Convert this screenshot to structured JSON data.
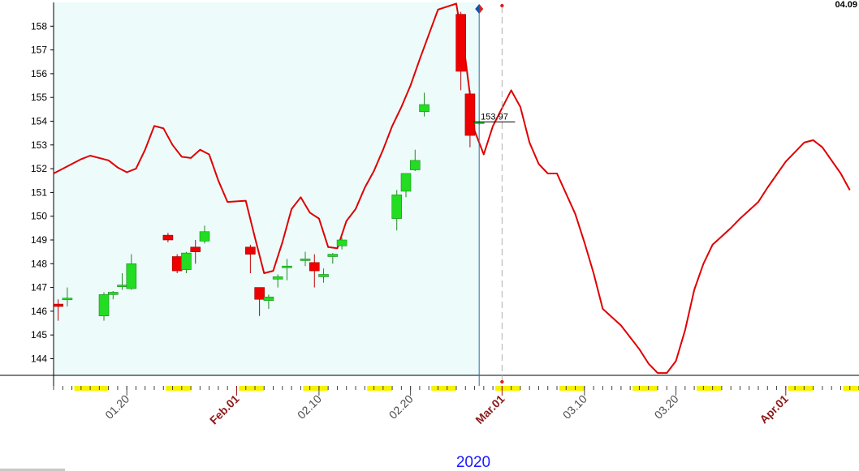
{
  "corner_label": "04.09",
  "year_label": "2020",
  "colors": {
    "background": "#ffffff",
    "history_shade": "#edfbfb",
    "cycle_line": "#e00000",
    "candle_up": "#22dd22",
    "candle_down": "#ee0000",
    "today_line": "#2a6ea0",
    "projection_line": "#b0b0b0",
    "marker_bar": "#f7f200",
    "month_label": "#8b1a1a",
    "date_label": "#4d4d4d"
  },
  "chart_data": {
    "type": "candlestick",
    "y_axis": {
      "min": 143.3,
      "max": 159.0,
      "ticks": [
        144,
        145,
        146,
        147,
        148,
        149,
        150,
        151,
        152,
        153,
        154,
        155,
        156,
        157,
        158
      ]
    },
    "x_axis": {
      "start": "2020-01-12",
      "end": "2020-04-09",
      "labels": [
        {
          "date": "2020-01-20",
          "text": "01.20",
          "type": "date"
        },
        {
          "date": "2020-02-01",
          "text": "Feb.01",
          "type": "month"
        },
        {
          "date": "2020-02-10",
          "text": "02.10",
          "type": "date"
        },
        {
          "date": "2020-02-20",
          "text": "02.20",
          "type": "date"
        },
        {
          "date": "2020-03-01",
          "text": "Mar.01",
          "type": "month"
        },
        {
          "date": "2020-03-10",
          "text": "03.10",
          "type": "date"
        },
        {
          "date": "2020-03-20",
          "text": "03.20",
          "type": "date"
        },
        {
          "date": "2020-04-01",
          "text": "Apr.01",
          "type": "month"
        }
      ]
    },
    "candles": [
      {
        "date": "2020-01-12",
        "open": 146.3,
        "high": 146.5,
        "low": 145.6,
        "close": 146.2
      },
      {
        "date": "2020-01-13",
        "open": 146.5,
        "high": 147.0,
        "low": 146.2,
        "close": 146.55
      },
      {
        "date": "2020-01-17",
        "open": 145.8,
        "high": 146.8,
        "low": 145.6,
        "close": 146.7
      },
      {
        "date": "2020-01-18",
        "open": 146.7,
        "high": 146.85,
        "low": 146.5,
        "close": 146.8
      },
      {
        "date": "2020-01-19",
        "open": 147.05,
        "high": 147.6,
        "low": 146.9,
        "close": 147.1
      },
      {
        "date": "2020-01-20",
        "open": 146.95,
        "high": 148.4,
        "low": 146.9,
        "close": 148.0
      },
      {
        "date": "2020-01-24",
        "open": 149.2,
        "high": 149.3,
        "low": 148.9,
        "close": 149.0
      },
      {
        "date": "2020-01-25",
        "open": 148.3,
        "high": 148.4,
        "low": 147.6,
        "close": 147.7
      },
      {
        "date": "2020-01-26",
        "open": 147.75,
        "high": 148.5,
        "low": 147.6,
        "close": 148.45
      },
      {
        "date": "2020-01-27",
        "open": 148.7,
        "high": 149.0,
        "low": 148.0,
        "close": 148.5
      },
      {
        "date": "2020-01-28",
        "open": 148.95,
        "high": 149.6,
        "low": 148.85,
        "close": 149.35
      },
      {
        "date": "2020-02-02",
        "open": 148.7,
        "high": 148.8,
        "low": 147.6,
        "close": 148.4
      },
      {
        "date": "2020-02-03",
        "open": 147.0,
        "high": 147.0,
        "low": 145.8,
        "close": 146.5
      },
      {
        "date": "2020-02-04",
        "open": 146.45,
        "high": 146.7,
        "low": 146.1,
        "close": 146.6
      },
      {
        "date": "2020-02-05",
        "open": 147.35,
        "high": 147.55,
        "low": 147.0,
        "close": 147.45
      },
      {
        "date": "2020-02-06",
        "open": 147.9,
        "high": 148.2,
        "low": 147.3,
        "close": 147.9
      },
      {
        "date": "2020-02-08",
        "open": 148.2,
        "high": 148.5,
        "low": 147.9,
        "close": 148.2
      },
      {
        "date": "2020-02-09",
        "open": 148.05,
        "high": 148.4,
        "low": 147.0,
        "close": 147.7
      },
      {
        "date": "2020-02-10",
        "open": 147.45,
        "high": 147.8,
        "low": 147.2,
        "close": 147.55
      },
      {
        "date": "2020-02-11",
        "open": 148.3,
        "high": 148.45,
        "low": 148.0,
        "close": 148.4
      },
      {
        "date": "2020-02-12",
        "open": 148.75,
        "high": 149.1,
        "low": 148.6,
        "close": 149.0
      },
      {
        "date": "2020-02-18",
        "open": 149.9,
        "high": 151.1,
        "low": 149.4,
        "close": 150.9
      },
      {
        "date": "2020-02-19",
        "open": 151.05,
        "high": 151.8,
        "low": 150.8,
        "close": 151.8
      },
      {
        "date": "2020-02-20",
        "open": 151.95,
        "high": 152.8,
        "low": 151.9,
        "close": 152.35
      },
      {
        "date": "2020-02-21",
        "open": 154.4,
        "high": 155.2,
        "low": 154.2,
        "close": 154.7
      },
      {
        "date": "2020-02-25",
        "open": 158.5,
        "high": 158.6,
        "low": 155.3,
        "close": 156.1
      },
      {
        "date": "2020-02-26",
        "open": 155.15,
        "high": 155.3,
        "low": 152.9,
        "close": 153.4
      },
      {
        "date": "2020-02-27",
        "open": 153.9,
        "high": 154.0,
        "low": 153.85,
        "close": 153.97
      }
    ],
    "last_price_label": "153.97",
    "cycle_line": [
      [
        "2020-01-12",
        151.8
      ],
      [
        "2020-01-13",
        152.0
      ],
      [
        "2020-01-15",
        152.4
      ],
      [
        "2020-01-16",
        152.55
      ],
      [
        "2020-01-18",
        152.35
      ],
      [
        "2020-01-19",
        152.05
      ],
      [
        "2020-01-20",
        151.85
      ],
      [
        "2020-01-21",
        152.0
      ],
      [
        "2020-01-22",
        152.8
      ],
      [
        "2020-01-23",
        153.8
      ],
      [
        "2020-01-24",
        153.7
      ],
      [
        "2020-01-25",
        153.0
      ],
      [
        "2020-01-26",
        152.5
      ],
      [
        "2020-01-27",
        152.45
      ],
      [
        "2020-01-28",
        152.8
      ],
      [
        "2020-01-29",
        152.6
      ],
      [
        "2020-01-30",
        151.5
      ],
      [
        "2020-01-31",
        150.6
      ],
      [
        "2020-02-02",
        150.65
      ],
      [
        "2020-02-03",
        149.1
      ],
      [
        "2020-02-04",
        147.6
      ],
      [
        "2020-02-05",
        147.7
      ],
      [
        "2020-02-06",
        148.9
      ],
      [
        "2020-02-07",
        150.3
      ],
      [
        "2020-02-08",
        150.8
      ],
      [
        "2020-02-09",
        150.15
      ],
      [
        "2020-02-10",
        149.9
      ],
      [
        "2020-02-11",
        148.7
      ],
      [
        "2020-02-12",
        148.65
      ],
      [
        "2020-02-13",
        149.8
      ],
      [
        "2020-02-14",
        150.3
      ],
      [
        "2020-02-15",
        151.2
      ],
      [
        "2020-02-16",
        151.9
      ],
      [
        "2020-02-17",
        152.8
      ],
      [
        "2020-02-18",
        153.8
      ],
      [
        "2020-02-19",
        154.6
      ],
      [
        "2020-02-20",
        155.5
      ],
      [
        "2020-02-21",
        156.6
      ],
      [
        "2020-02-23",
        158.7
      ],
      [
        "2020-02-25",
        158.95
      ],
      [
        "2020-02-26",
        156.6
      ],
      [
        "2020-02-27",
        153.6
      ],
      [
        "2020-02-28",
        152.6
      ],
      [
        "2020-02-29",
        153.8
      ],
      [
        "2020-03-02",
        155.3
      ],
      [
        "2020-03-03",
        154.6
      ],
      [
        "2020-03-04",
        153.1
      ],
      [
        "2020-03-05",
        152.2
      ],
      [
        "2020-03-06",
        151.8
      ],
      [
        "2020-03-07",
        151.8
      ],
      [
        "2020-03-09",
        150.1
      ],
      [
        "2020-03-10",
        148.9
      ],
      [
        "2020-03-11",
        147.6
      ],
      [
        "2020-03-12",
        146.1
      ],
      [
        "2020-03-14",
        145.4
      ],
      [
        "2020-03-15",
        144.9
      ],
      [
        "2020-03-16",
        144.4
      ],
      [
        "2020-03-17",
        143.8
      ],
      [
        "2020-03-18",
        143.4
      ],
      [
        "2020-03-19",
        143.4
      ],
      [
        "2020-03-20",
        143.9
      ],
      [
        "2020-03-21",
        145.2
      ],
      [
        "2020-03-22",
        146.9
      ],
      [
        "2020-03-23",
        148.0
      ],
      [
        "2020-03-24",
        148.8
      ],
      [
        "2020-03-26",
        149.5
      ],
      [
        "2020-03-27",
        149.9
      ],
      [
        "2020-03-29",
        150.6
      ],
      [
        "2020-03-30",
        151.2
      ],
      [
        "2020-04-01",
        152.3
      ],
      [
        "2020-04-03",
        153.1
      ],
      [
        "2020-04-04",
        153.2
      ],
      [
        "2020-04-05",
        152.9
      ],
      [
        "2020-04-07",
        151.8
      ],
      [
        "2020-04-08",
        151.1
      ]
    ],
    "history_end": "2020-02-27",
    "projection_date": "2020-03-01",
    "marker_bars": [
      [
        "2020-01-14",
        "2020-01-17"
      ],
      [
        "2020-01-24",
        "2020-01-26"
      ],
      [
        "2020-02-01",
        "2020-02-03"
      ],
      [
        "2020-02-08",
        "2020-02-10"
      ],
      [
        "2020-02-15",
        "2020-02-17"
      ],
      [
        "2020-02-22",
        "2020-02-24"
      ],
      [
        "2020-02-29",
        "2020-03-02"
      ],
      [
        "2020-03-07",
        "2020-03-09"
      ],
      [
        "2020-03-15",
        "2020-03-17"
      ],
      [
        "2020-03-22",
        "2020-03-24"
      ],
      [
        "2020-04-01",
        "2020-04-03"
      ],
      [
        "2020-04-07",
        "2020-04-09"
      ]
    ],
    "legend": null
  }
}
